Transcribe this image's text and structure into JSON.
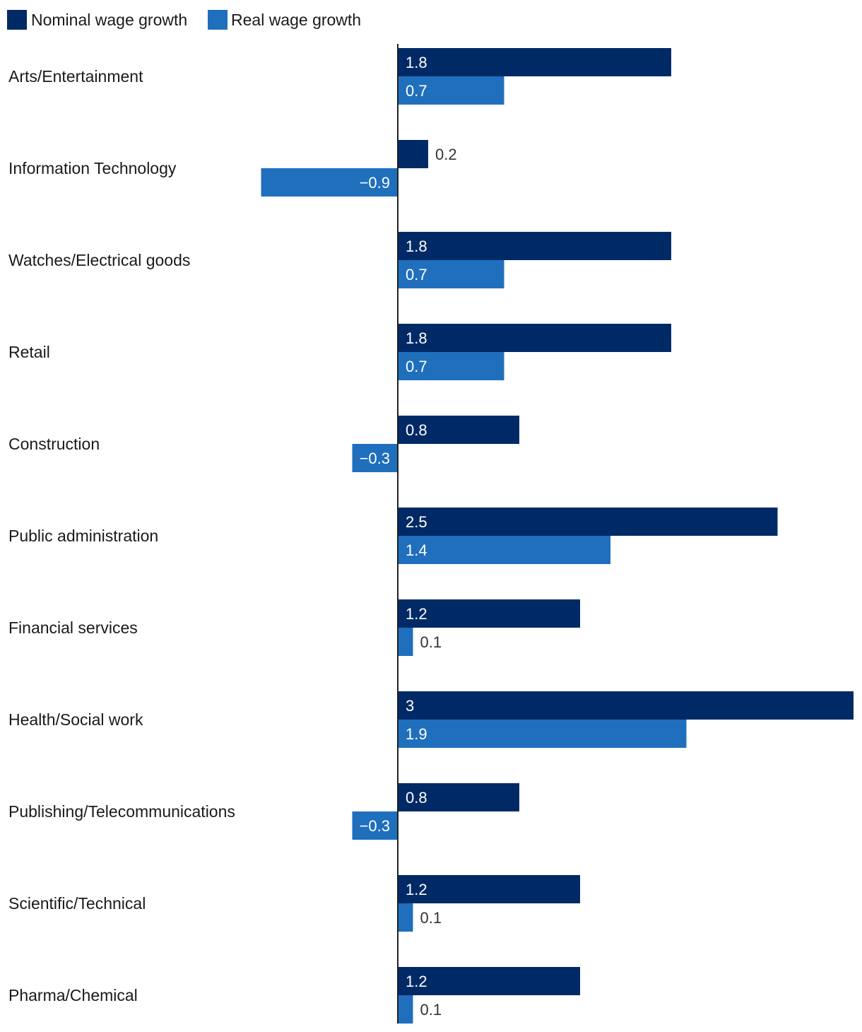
{
  "chart_data": {
    "type": "bar",
    "orientation": "horizontal",
    "categories": [
      "Arts/Entertainment",
      "Information Technology",
      "Watches/Electrical goods",
      "Retail",
      "Construction",
      "Public administration",
      "Financial services",
      "Health/Social work",
      "Publishing/Telecommunications",
      "Scientific/Technical",
      "Pharma/Chemical"
    ],
    "series": [
      {
        "name": "Nominal wage growth",
        "color": "#002a66",
        "values": [
          1.8,
          0.2,
          1.8,
          1.8,
          0.8,
          2.5,
          1.2,
          3,
          0.8,
          1.2,
          1.2
        ],
        "labels": [
          "1.8",
          "0.2",
          "1.8",
          "1.8",
          "0.8",
          "2.5",
          "1.2",
          "3",
          "0.8",
          "1.2",
          "1.2"
        ]
      },
      {
        "name": "Real wage growth",
        "color": "#1f6fbd",
        "values": [
          0.7,
          -0.9,
          0.7,
          0.7,
          -0.3,
          1.4,
          0.1,
          1.9,
          -0.3,
          0.1,
          0.1
        ],
        "labels": [
          "0.7",
          "−0.9",
          "0.7",
          "0.7",
          "−0.3",
          "1.4",
          "0.1",
          "1.9",
          "−0.3",
          "0.1",
          "0.1"
        ]
      }
    ],
    "xlim": [
      -0.9,
      3
    ],
    "legend": "top-left",
    "grid": false,
    "title": "",
    "xlabel": "",
    "ylabel": ""
  }
}
